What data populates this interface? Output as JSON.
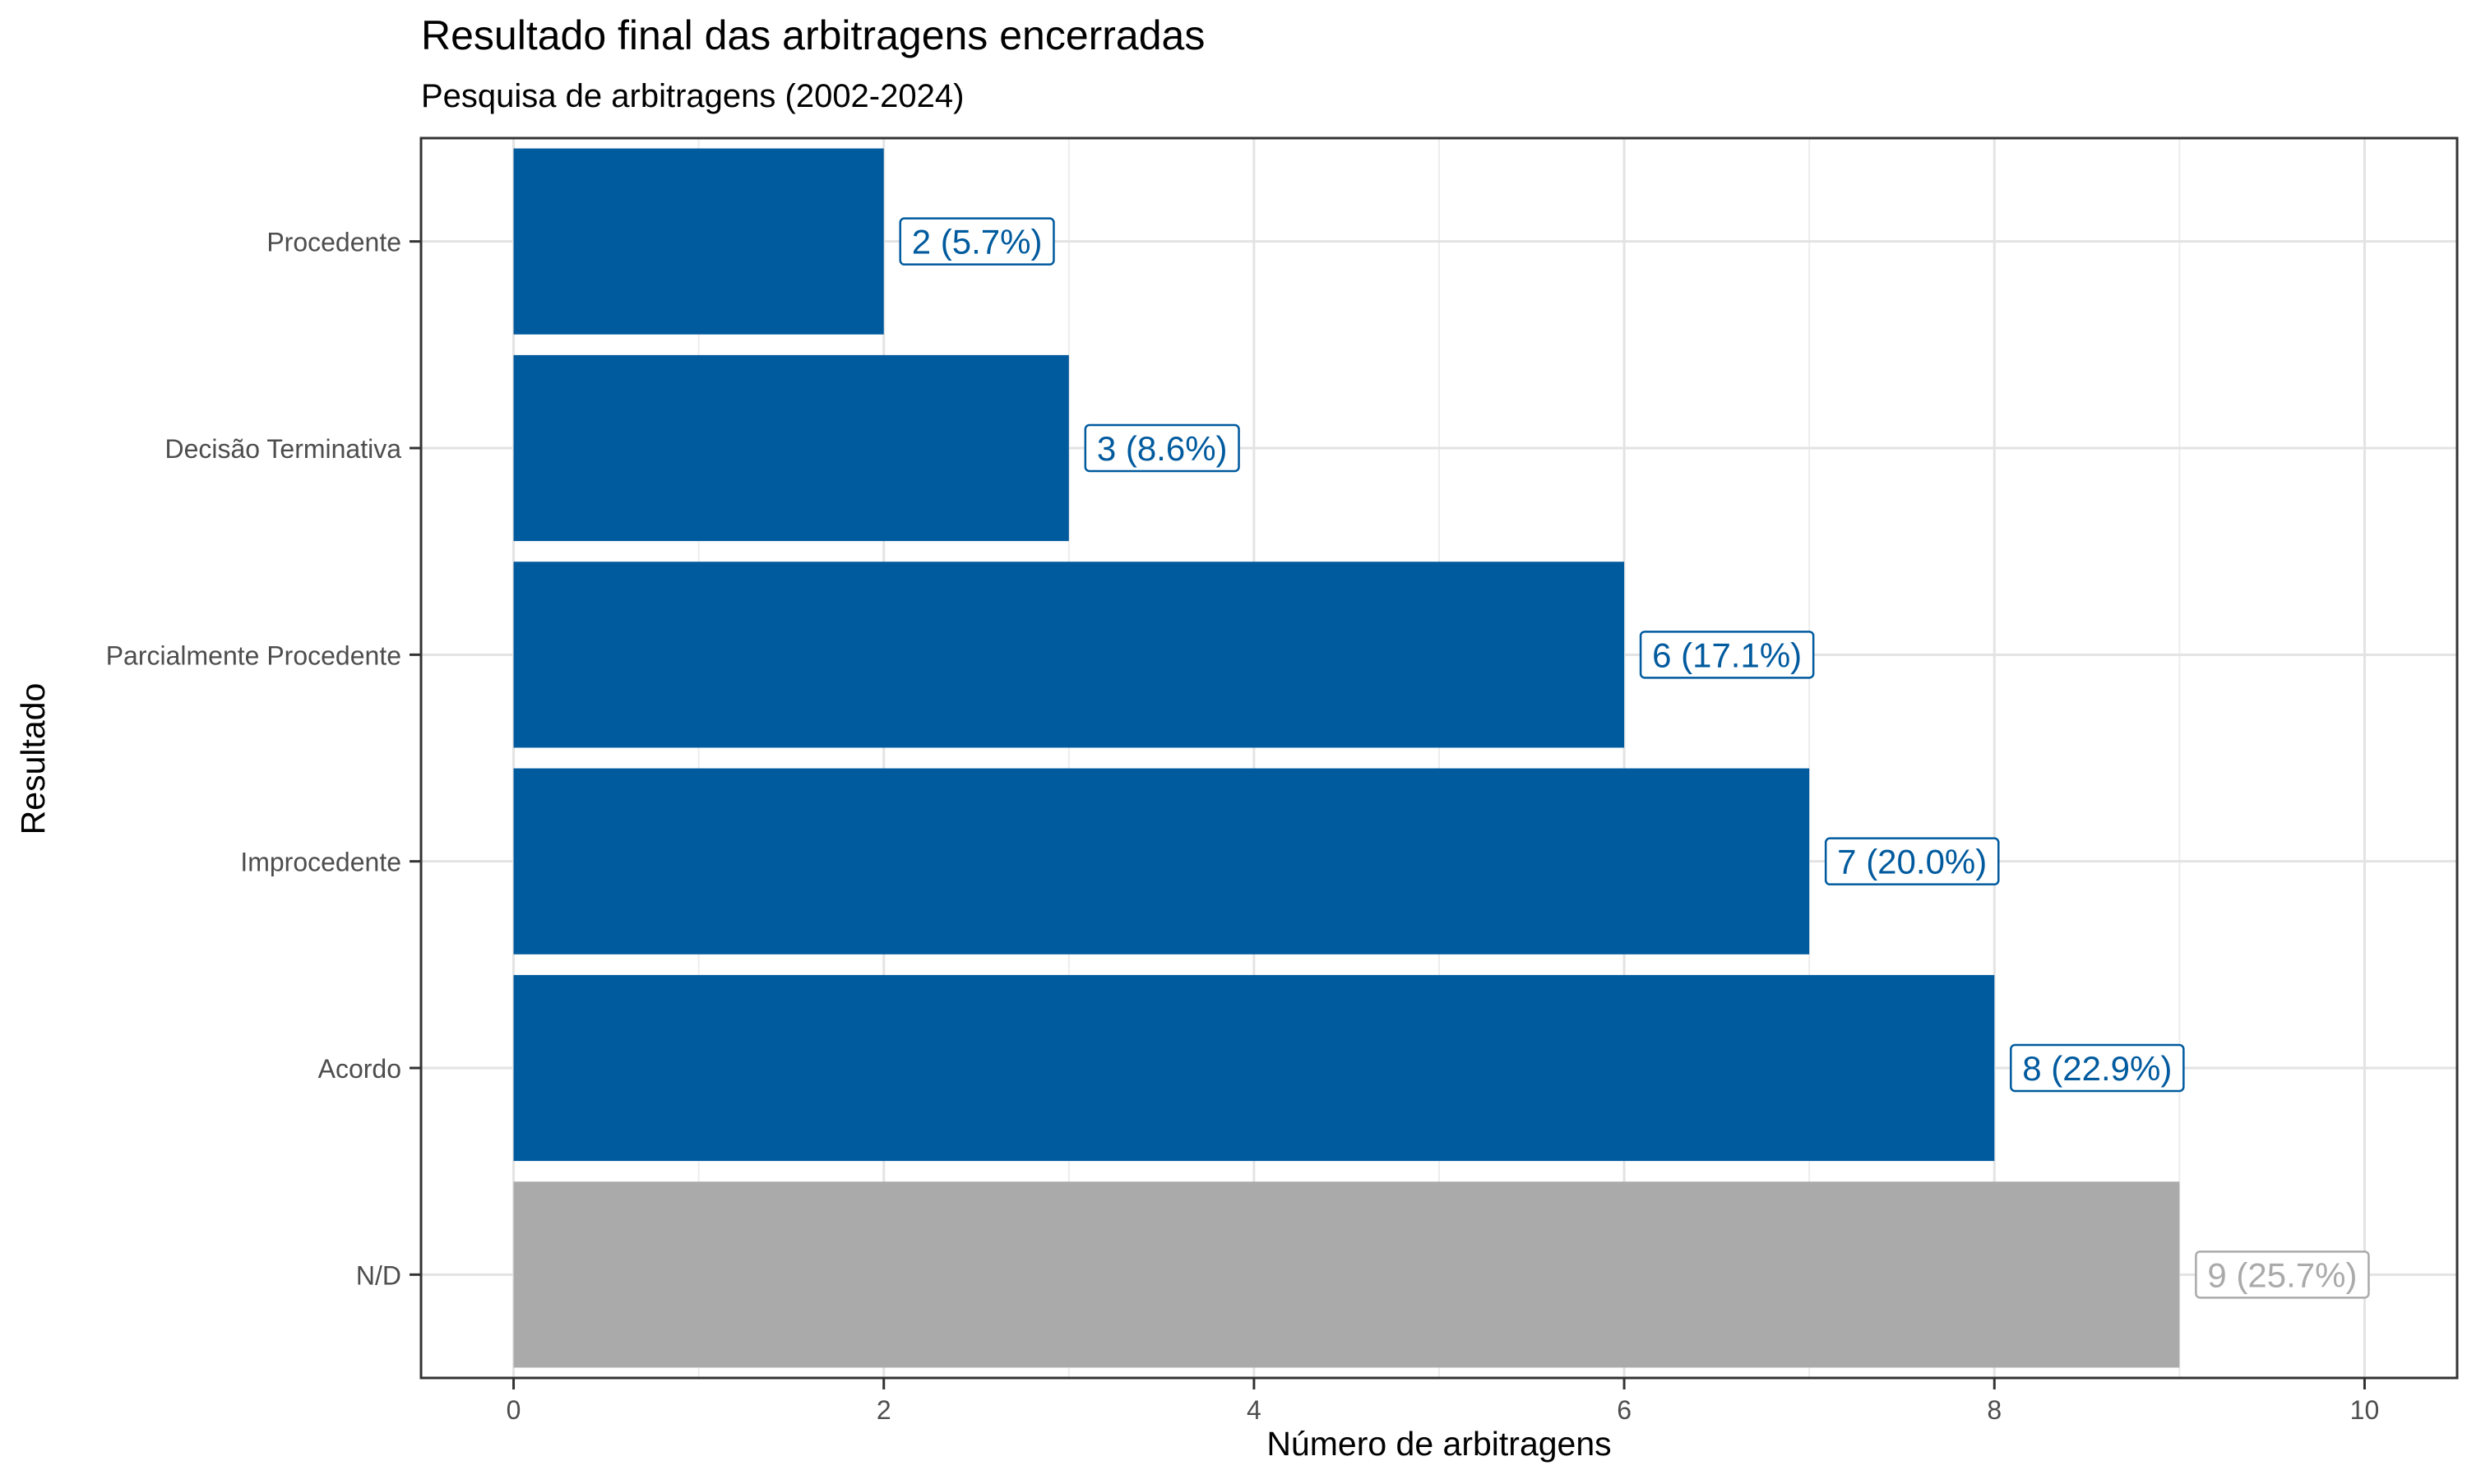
{
  "chart_data": {
    "type": "bar",
    "orientation": "horizontal",
    "title": "Resultado final das arbitragens encerradas",
    "subtitle": "Pesquisa de arbitragens (2002-2024)",
    "xlabel": "Número de arbitragens",
    "ylabel": "Resultado",
    "xlim": [
      -0.5,
      10.5
    ],
    "x_ticks": [
      0,
      2,
      4,
      6,
      8,
      10
    ],
    "grid": true,
    "categories": [
      "Procedente",
      "Decisão Terminativa",
      "Parcialmente Procedente",
      "Improcedente",
      "Acordo",
      "N/D"
    ],
    "values": [
      2,
      3,
      6,
      7,
      8,
      9
    ],
    "data_labels": [
      "2 (5.7%)",
      "3 (8.6%)",
      "6 (17.1%)",
      "7 (20.0%)",
      "8 (22.9%)",
      "9 (25.7%)"
    ],
    "bar_colors": [
      "#005a9e",
      "#005a9e",
      "#005a9e",
      "#005a9e",
      "#005a9e",
      "#aaaaaa"
    ]
  }
}
